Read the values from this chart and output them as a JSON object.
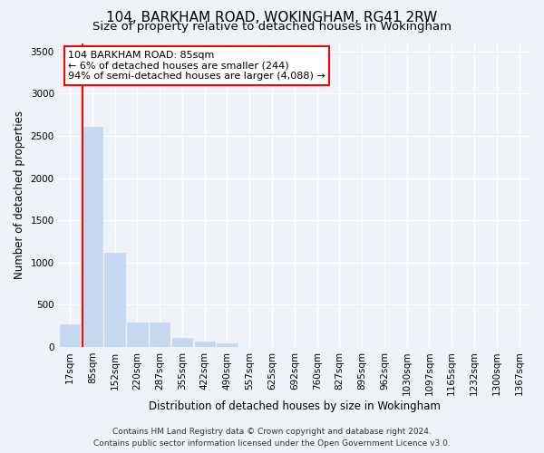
{
  "title": "104, BARKHAM ROAD, WOKINGHAM, RG41 2RW",
  "subtitle": "Size of property relative to detached houses in Wokingham",
  "xlabel": "Distribution of detached houses by size in Wokingham",
  "ylabel": "Number of detached properties",
  "categories": [
    "17sqm",
    "85sqm",
    "152sqm",
    "220sqm",
    "287sqm",
    "355sqm",
    "422sqm",
    "490sqm",
    "557sqm",
    "625sqm",
    "692sqm",
    "760sqm",
    "827sqm",
    "895sqm",
    "962sqm",
    "1030sqm",
    "1097sqm",
    "1165sqm",
    "1232sqm",
    "1300sqm",
    "1367sqm"
  ],
  "values": [
    270,
    2610,
    1120,
    285,
    285,
    105,
    60,
    40,
    0,
    0,
    0,
    0,
    0,
    0,
    0,
    0,
    0,
    0,
    0,
    0,
    0
  ],
  "bar_color": "#c5d8f0",
  "bar_edge_color": "#c5d8f0",
  "highlight_line_color": "red",
  "highlight_bar_index": 1,
  "annotation_text": "104 BARKHAM ROAD: 85sqm\n← 6% of detached houses are smaller (244)\n94% of semi-detached houses are larger (4,088) →",
  "annotation_box_color": "white",
  "annotation_box_edge_color": "red",
  "ylim": [
    0,
    3600
  ],
  "yticks": [
    0,
    500,
    1000,
    1500,
    2000,
    2500,
    3000,
    3500
  ],
  "background_color": "#eef2fb",
  "grid_color": "#ffffff",
  "footer_line1": "Contains HM Land Registry data © Crown copyright and database right 2024.",
  "footer_line2": "Contains public sector information licensed under the Open Government Licence v3.0.",
  "title_fontsize": 11,
  "subtitle_fontsize": 9.5,
  "xlabel_fontsize": 8.5,
  "ylabel_fontsize": 8.5,
  "tick_fontsize": 7.5,
  "annotation_fontsize": 8,
  "footer_fontsize": 6.5
}
